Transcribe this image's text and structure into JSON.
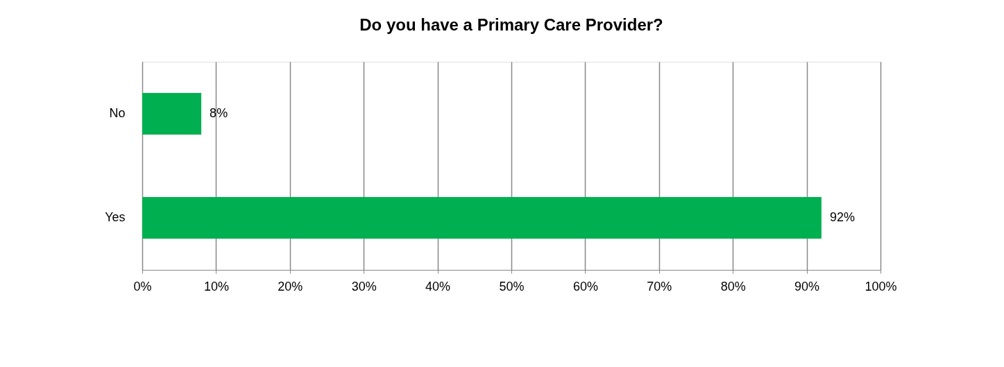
{
  "chart_data": {
    "type": "bar",
    "orientation": "horizontal",
    "title": "Do you have a Primary Care Provider?",
    "categories": [
      "No",
      "Yes"
    ],
    "values": [
      8,
      92
    ],
    "value_labels": [
      "8%",
      "92%"
    ],
    "color": "#00b050",
    "xlim": [
      0,
      100
    ],
    "xticks": [
      {
        "value": 0,
        "label": "0%"
      },
      {
        "value": 10,
        "label": "10%"
      },
      {
        "value": 20,
        "label": "20%"
      },
      {
        "value": 30,
        "label": "30%"
      },
      {
        "value": 40,
        "label": "40%"
      },
      {
        "value": 50,
        "label": "50%"
      },
      {
        "value": 60,
        "label": "60%"
      },
      {
        "value": 70,
        "label": "70%"
      },
      {
        "value": 80,
        "label": "80%"
      },
      {
        "value": 90,
        "label": "90%"
      },
      {
        "value": 100,
        "label": "100%"
      }
    ],
    "grid": "x"
  }
}
